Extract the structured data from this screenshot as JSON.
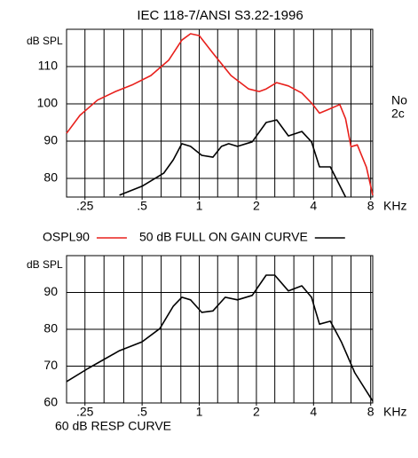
{
  "chart_data": [
    {
      "type": "line",
      "title": "IEC 118-7/ANSI S3.22-1996",
      "ylabel": "dB SPL",
      "xlabel": "KHz",
      "xscale": "log",
      "grid": true,
      "legend": "below",
      "xlim": [
        0.2,
        8.2
      ],
      "ylim": [
        75,
        120
      ],
      "xticks": [
        {
          "value": 0.25,
          "label": ".25"
        },
        {
          "value": 0.5,
          "label": ".5"
        },
        1,
        2,
        4,
        8
      ],
      "xgrid": [
        0.2,
        0.25,
        0.315,
        0.4,
        0.5,
        0.63,
        0.8,
        1,
        1.25,
        1.6,
        2,
        2.5,
        3.15,
        4,
        5,
        6.3,
        8
      ],
      "yticks": [
        80,
        90,
        100,
        110
      ],
      "annotations": [
        "No",
        "2c"
      ],
      "series": [
        {
          "name": "OSPL90",
          "color": "#e8201c",
          "x": [
            0.2,
            0.235,
            0.291,
            0.362,
            0.448,
            0.556,
            0.69,
            0.81,
            0.9,
            1.0,
            1.18,
            1.47,
            1.82,
            2.07,
            2.25,
            2.56,
            2.95,
            3.47,
            3.94,
            4.3,
            4.8,
            5.5,
            5.9,
            6.3,
            6.8,
            7.6,
            8.2
          ],
          "values": [
            92.1,
            96.9,
            101,
            103.3,
            105.2,
            107.6,
            111.7,
            117.1,
            118.8,
            118.3,
            113.6,
            107.6,
            104,
            103.3,
            104,
            105.7,
            104.8,
            102.9,
            100,
            97.5,
            98.5,
            99.8,
            96,
            88.5,
            89,
            83,
            75.5
          ]
        },
        {
          "name": "50 dB FULL ON GAIN CURVE",
          "color": "#000000",
          "x": [
            0.38,
            0.5,
            0.65,
            0.73,
            0.81,
            0.9,
            1.03,
            1.18,
            1.31,
            1.43,
            1.59,
            1.9,
            2.25,
            2.56,
            2.95,
            3.47,
            3.9,
            4.3,
            4.9,
            5.9
          ],
          "values": [
            75.5,
            77.9,
            81.4,
            85,
            89.3,
            88.6,
            86.2,
            85.7,
            88.6,
            89.3,
            88.6,
            89.8,
            95,
            95.7,
            91.4,
            92.6,
            89.8,
            83.1,
            83.1,
            75
          ]
        }
      ]
    },
    {
      "type": "line",
      "caption": "60 dB RESP CURVE",
      "ylabel": "dB SPL",
      "xlabel": "KHz",
      "xscale": "log",
      "grid": true,
      "xlim": [
        0.2,
        8.2
      ],
      "ylim": [
        60,
        100
      ],
      "xticks": [
        {
          "value": 0.25,
          "label": ".25"
        },
        {
          "value": 0.5,
          "label": ".5"
        },
        1,
        2,
        4,
        8
      ],
      "xgrid": [
        0.2,
        0.25,
        0.315,
        0.4,
        0.5,
        0.63,
        0.8,
        1,
        1.25,
        1.6,
        2,
        2.5,
        3.15,
        4,
        5,
        6.3,
        8
      ],
      "yticks": [
        60,
        70,
        80,
        90
      ],
      "series": [
        {
          "color": "#000000",
          "x": [
            0.2,
            0.26,
            0.38,
            0.5,
            0.62,
            0.73,
            0.81,
            0.9,
            1.03,
            1.18,
            1.37,
            1.59,
            1.9,
            2.25,
            2.5,
            2.95,
            3.47,
            3.9,
            4.3,
            4.9,
            5.6,
            6.6,
            8.2
          ],
          "values": [
            65.8,
            69.4,
            74.2,
            76.6,
            80.2,
            86.3,
            88.7,
            88,
            84.6,
            85,
            88.7,
            88,
            89.2,
            94.7,
            94.7,
            90.4,
            91.8,
            88.7,
            81.4,
            82.2,
            76.6,
            68.2,
            60.5
          ]
        }
      ]
    }
  ]
}
